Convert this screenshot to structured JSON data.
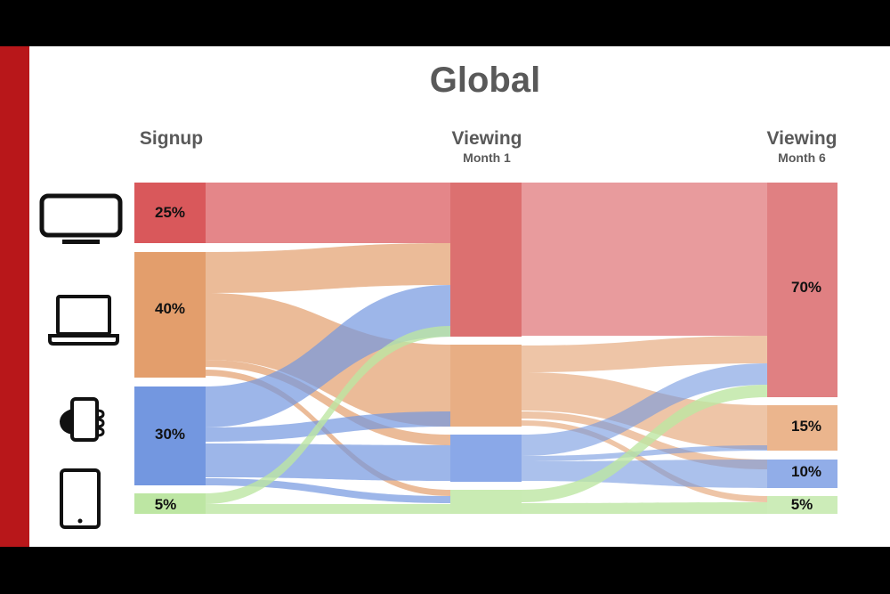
{
  "title": "Global",
  "columns": {
    "signup": {
      "label": "Signup"
    },
    "month1": {
      "label": "Viewing",
      "sublabel": "Month 1"
    },
    "month6": {
      "label": "Viewing",
      "sublabel": "Month 6"
    }
  },
  "devices": [
    {
      "icon": "tv-icon",
      "color": "#d9585b",
      "signup_pct": "25%"
    },
    {
      "icon": "laptop-icon",
      "color": "#e39e6c",
      "signup_pct": "40%"
    },
    {
      "icon": "phone-icon",
      "color": "#7397e0",
      "signup_pct": "30%"
    },
    {
      "icon": "tablet-icon",
      "color": "#bde6a3",
      "signup_pct": "5%"
    }
  ],
  "month6_pct": [
    "70%",
    "15%",
    "10%",
    "5%"
  ],
  "colors": {
    "accent_strip": "#b8171a",
    "text": "#595959"
  }
}
